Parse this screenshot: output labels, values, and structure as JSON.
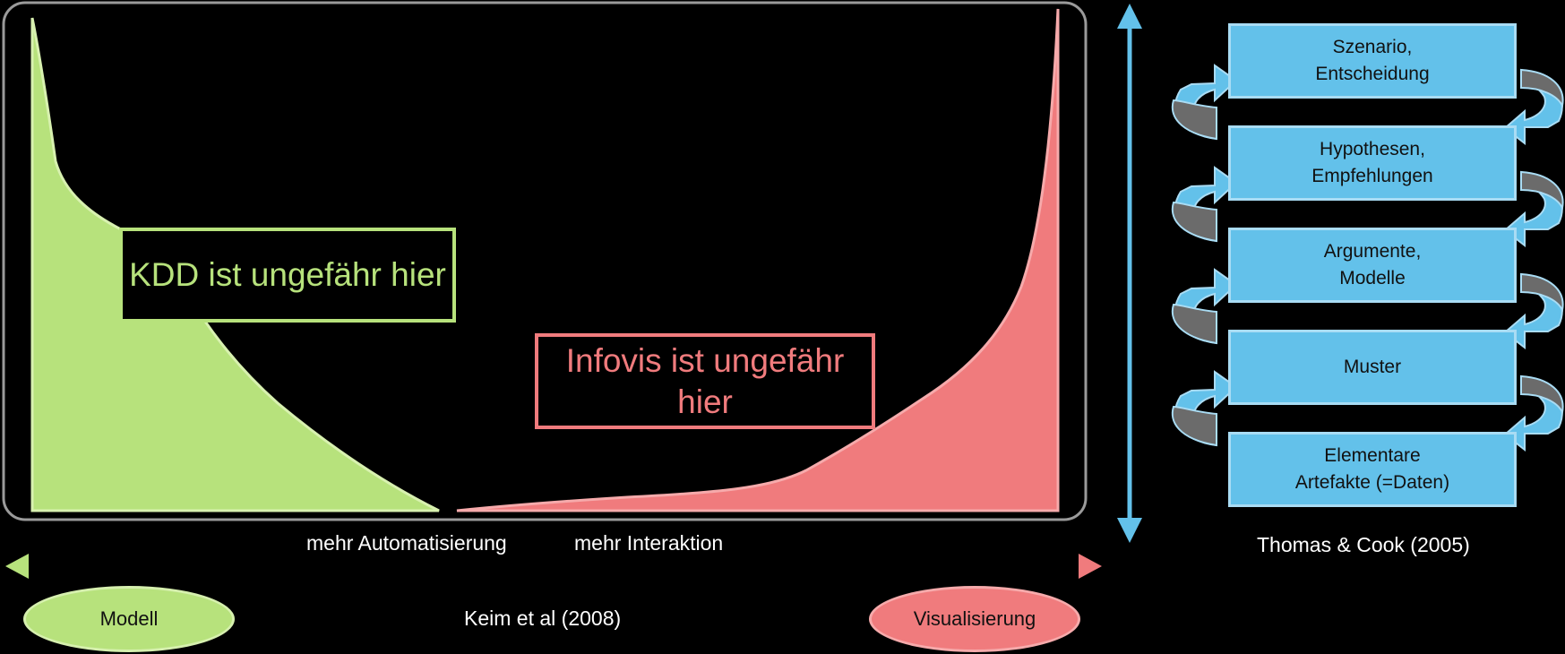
{
  "left_panel": {
    "kdd_label": "KDD ist ungefähr hier",
    "infovis_label": "Infovis ist ungefähr hier",
    "axis_left": "mehr Automatisierung",
    "axis_right": "mehr Interaktion",
    "model_label": "Modell",
    "vis_label": "Visualisierung",
    "citation": "Keim et al (2008)"
  },
  "right_panel": {
    "steps": [
      {
        "line1": "Szenario,",
        "line2": "Entscheidung"
      },
      {
        "line1": "Hypothesen,",
        "line2": "Empfehlungen"
      },
      {
        "line1": "Argumente,",
        "line2": "Modelle"
      },
      {
        "line1": "Muster",
        "line2": ""
      },
      {
        "line1": "Elementare",
        "line2": "Artefakte (=Daten)"
      }
    ],
    "citation": "Thomas & Cook (2005)"
  },
  "colors": {
    "green": "#b7e27c",
    "red": "#f07b7d",
    "blue": "#63c1ea",
    "gray_arrow": "#6b6b6b"
  }
}
